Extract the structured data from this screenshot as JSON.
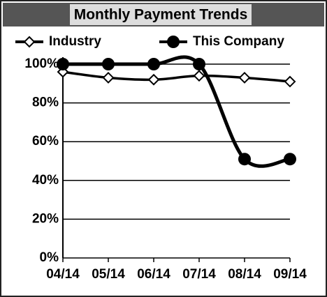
{
  "chart_data": {
    "type": "line",
    "title": "Monthly Payment Trends",
    "categories": [
      "04/14",
      "05/14",
      "06/14",
      "07/14",
      "08/14",
      "09/14"
    ],
    "series": [
      {
        "name": "Industry",
        "color": "#000000",
        "marker": "diamond",
        "values": [
          96,
          93,
          92,
          94,
          93,
          91
        ]
      },
      {
        "name": "This Company",
        "color": "#000000",
        "marker": "circle",
        "values": [
          100,
          100,
          100,
          100,
          51,
          51
        ]
      }
    ],
    "ylim": [
      0,
      100
    ],
    "yticks": [
      {
        "value": 0,
        "label": "0%"
      },
      {
        "value": 20,
        "label": "20%"
      },
      {
        "value": 40,
        "label": "40%"
      },
      {
        "value": 60,
        "label": "60%"
      },
      {
        "value": 80,
        "label": "80%"
      },
      {
        "value": 100,
        "label": "100%"
      }
    ],
    "grid": true,
    "legend": "top"
  }
}
